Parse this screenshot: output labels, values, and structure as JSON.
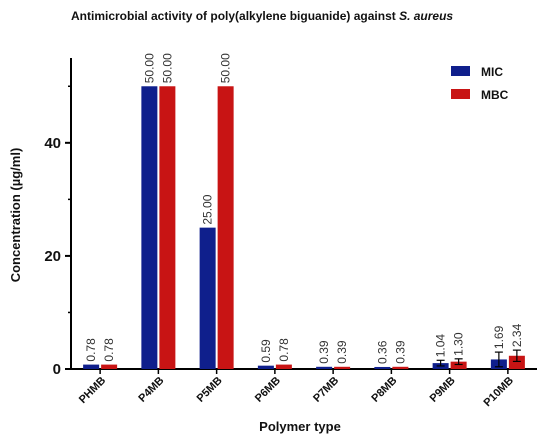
{
  "chart_data": {
    "type": "bar",
    "title": "Antimicrobial activity of poly(alkylene biguanide) against",
    "title_italic": "S. aureus",
    "xlabel": "Polymer type",
    "ylabel": "Concentration (µg/ml)",
    "categories": [
      "PHMB",
      "P4MB",
      "P5MB",
      "P6MB",
      "P7MB",
      "P8MB",
      "P9MB",
      "P10MB"
    ],
    "ylim": [
      0,
      55
    ],
    "yticks": [
      0,
      20,
      40
    ],
    "grid": false,
    "legend_position": "top-right",
    "series": [
      {
        "name": "MIC",
        "color": "#0f1f8c",
        "values": [
          0.78,
          50.0,
          25.0,
          0.59,
          0.39,
          0.36,
          1.04,
          1.69
        ],
        "labels": [
          "0.78",
          "50.00",
          "25.00",
          "0.59",
          "0.39",
          "0.36",
          "1.04",
          "1.69"
        ],
        "errors": [
          0,
          0,
          0,
          0,
          0,
          0,
          0.5,
          1.3
        ]
      },
      {
        "name": "MBC",
        "color": "#c81414",
        "values": [
          0.78,
          50.0,
          50.0,
          0.78,
          0.39,
          0.39,
          1.3,
          2.34
        ],
        "labels": [
          "0.78",
          "50.00",
          "50.00",
          "0.78",
          "0.39",
          "0.39",
          "1.30",
          "2.34"
        ],
        "errors": [
          0,
          0,
          0,
          0,
          0,
          0,
          0.5,
          1.0
        ]
      }
    ]
  }
}
